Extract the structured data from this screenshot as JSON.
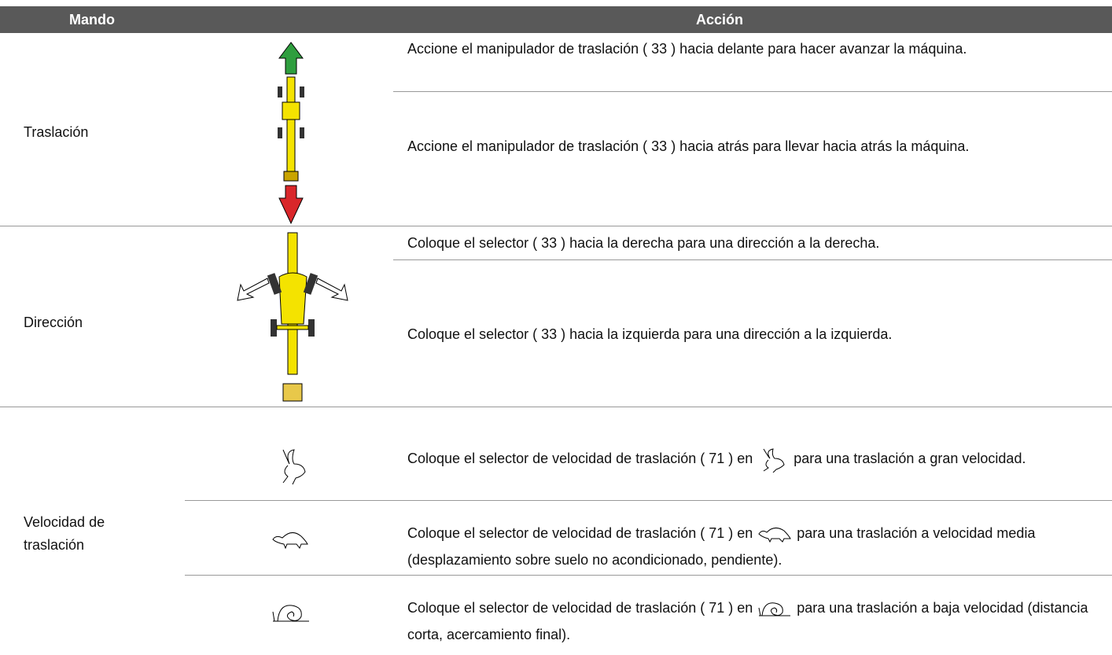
{
  "header": {
    "mando": "Mando",
    "accion": "Acción"
  },
  "rows": [
    {
      "mando": "Traslación",
      "actions": [
        "Accione el manipulador de traslación ( 33 ) hacia delante para hacer avanzar la máquina.",
        "Accione el manipulador de traslación ( 33 ) hacia atrás para llevar hacia atrás la máquina."
      ]
    },
    {
      "mando": "Dirección",
      "actions": [
        "Coloque el selector ( 33 ) hacia la derecha para una dirección a la derecha.",
        "Coloque el selector ( 33 ) hacia la izquierda para una dirección a la izquierda."
      ]
    },
    {
      "mando": "Velocidad de traslación",
      "actions": [
        {
          "before": "Coloque el selector de velocidad de traslación ( 71 ) en",
          "after": "para una traslación a gran velocidad."
        },
        {
          "before": "Coloque el selector de velocidad de traslación ( 71 ) en",
          "after": "para una traslación a velocidad media (desplazamiento sobre suelo no acondicionado, pendiente)."
        },
        {
          "before": "Coloque el selector de velocidad de traslación ( 71 ) en",
          "after": "para una traslación a baja velocidad (distancia corta, acercamiento final)."
        }
      ]
    }
  ]
}
